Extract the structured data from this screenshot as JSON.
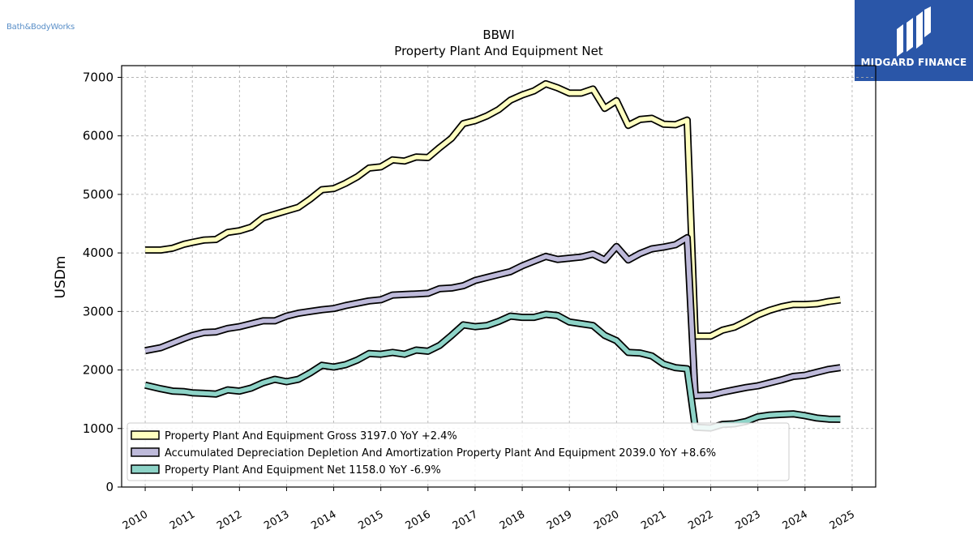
{
  "brand": {
    "company_text": "Bath&BodyWorks",
    "logo_text": "MIDGARD FINANCE"
  },
  "chart_data": {
    "type": "line",
    "title": "BBWI",
    "subtitle": "Property Plant And Equipment Net",
    "xlabel": "",
    "ylabel": "USDm",
    "xlim": [
      2009.5,
      2025.5
    ],
    "ylim": [
      0,
      7200
    ],
    "yticks": [
      0,
      1000,
      2000,
      3000,
      4000,
      5000,
      6000,
      7000
    ],
    "xticks": [
      "2010",
      "2011",
      "2012",
      "2013",
      "2014",
      "2015",
      "2016",
      "2017",
      "2018",
      "2019",
      "2020",
      "2021",
      "2022",
      "2023",
      "2024",
      "2025"
    ],
    "grid": true,
    "legend_position": "lower-left",
    "series": [
      {
        "name": "Property Plant And Equipment Gross",
        "legend_label": "Property Plant And Equipment Gross  3197.0 YoY +2.4%",
        "color": "#ffffc0",
        "points": [
          [
            2010.0,
            4050
          ],
          [
            2010.33,
            4050
          ],
          [
            2010.58,
            4080
          ],
          [
            2010.83,
            4150
          ],
          [
            2011.0,
            4180
          ],
          [
            2011.25,
            4220
          ],
          [
            2011.5,
            4230
          ],
          [
            2011.75,
            4350
          ],
          [
            2012.0,
            4380
          ],
          [
            2012.25,
            4440
          ],
          [
            2012.5,
            4600
          ],
          [
            2012.75,
            4660
          ],
          [
            2013.0,
            4720
          ],
          [
            2013.25,
            4780
          ],
          [
            2013.5,
            4920
          ],
          [
            2013.75,
            5080
          ],
          [
            2014.0,
            5100
          ],
          [
            2014.25,
            5190
          ],
          [
            2014.5,
            5300
          ],
          [
            2014.75,
            5450
          ],
          [
            2015.0,
            5470
          ],
          [
            2015.25,
            5590
          ],
          [
            2015.5,
            5570
          ],
          [
            2015.75,
            5640
          ],
          [
            2016.0,
            5630
          ],
          [
            2016.25,
            5800
          ],
          [
            2016.5,
            5960
          ],
          [
            2016.75,
            6210
          ],
          [
            2017.0,
            6260
          ],
          [
            2017.25,
            6340
          ],
          [
            2017.5,
            6450
          ],
          [
            2017.75,
            6610
          ],
          [
            2018.0,
            6700
          ],
          [
            2018.25,
            6770
          ],
          [
            2018.5,
            6890
          ],
          [
            2018.75,
            6820
          ],
          [
            2019.0,
            6730
          ],
          [
            2019.25,
            6730
          ],
          [
            2019.5,
            6800
          ],
          [
            2019.75,
            6470
          ],
          [
            2020.0,
            6600
          ],
          [
            2020.25,
            6180
          ],
          [
            2020.5,
            6280
          ],
          [
            2020.75,
            6300
          ],
          [
            2021.0,
            6200
          ],
          [
            2021.25,
            6190
          ],
          [
            2021.5,
            6270
          ],
          [
            2021.67,
            2580
          ],
          [
            2022.0,
            2580
          ],
          [
            2022.25,
            2680
          ],
          [
            2022.5,
            2730
          ],
          [
            2022.75,
            2830
          ],
          [
            2023.0,
            2940
          ],
          [
            2023.25,
            3020
          ],
          [
            2023.5,
            3080
          ],
          [
            2023.75,
            3120
          ],
          [
            2024.0,
            3120
          ],
          [
            2024.25,
            3130
          ],
          [
            2024.5,
            3170
          ],
          [
            2024.75,
            3197
          ]
        ]
      },
      {
        "name": "Accumulated Depreciation Depletion And Amortization Property Plant And Equipment",
        "legend_label": "Accumulated Depreciation Depletion And Amortization Property Plant And Equipment  2039.0 YoY +8.6%",
        "color": "#bebada",
        "points": [
          [
            2010.0,
            2330
          ],
          [
            2010.33,
            2380
          ],
          [
            2010.58,
            2460
          ],
          [
            2010.83,
            2540
          ],
          [
            2011.0,
            2590
          ],
          [
            2011.25,
            2640
          ],
          [
            2011.5,
            2650
          ],
          [
            2011.75,
            2710
          ],
          [
            2012.0,
            2740
          ],
          [
            2012.25,
            2790
          ],
          [
            2012.5,
            2840
          ],
          [
            2012.75,
            2840
          ],
          [
            2013.0,
            2920
          ],
          [
            2013.25,
            2970
          ],
          [
            2013.5,
            3000
          ],
          [
            2013.75,
            3030
          ],
          [
            2014.0,
            3050
          ],
          [
            2014.25,
            3100
          ],
          [
            2014.5,
            3140
          ],
          [
            2014.75,
            3180
          ],
          [
            2015.0,
            3200
          ],
          [
            2015.25,
            3280
          ],
          [
            2015.5,
            3290
          ],
          [
            2015.75,
            3300
          ],
          [
            2016.0,
            3310
          ],
          [
            2016.25,
            3390
          ],
          [
            2016.5,
            3400
          ],
          [
            2016.75,
            3440
          ],
          [
            2017.0,
            3530
          ],
          [
            2017.25,
            3580
          ],
          [
            2017.5,
            3630
          ],
          [
            2017.75,
            3680
          ],
          [
            2018.0,
            3780
          ],
          [
            2018.25,
            3860
          ],
          [
            2018.5,
            3940
          ],
          [
            2018.75,
            3890
          ],
          [
            2019.0,
            3910
          ],
          [
            2019.25,
            3930
          ],
          [
            2019.5,
            3980
          ],
          [
            2019.75,
            3880
          ],
          [
            2020.0,
            4110
          ],
          [
            2020.25,
            3880
          ],
          [
            2020.5,
            3990
          ],
          [
            2020.75,
            4070
          ],
          [
            2021.0,
            4100
          ],
          [
            2021.25,
            4140
          ],
          [
            2021.5,
            4260
          ],
          [
            2021.67,
            1560
          ],
          [
            2022.0,
            1570
          ],
          [
            2022.25,
            1620
          ],
          [
            2022.5,
            1660
          ],
          [
            2022.75,
            1700
          ],
          [
            2023.0,
            1730
          ],
          [
            2023.25,
            1780
          ],
          [
            2023.5,
            1830
          ],
          [
            2023.75,
            1890
          ],
          [
            2024.0,
            1910
          ],
          [
            2024.25,
            1960
          ],
          [
            2024.5,
            2010
          ],
          [
            2024.75,
            2039
          ]
        ]
      },
      {
        "name": "Property Plant And Equipment Net",
        "legend_label": "Property Plant And Equipment Net  1158.0 YoY -6.9%",
        "color": "#8dd3c7",
        "points": [
          [
            2010.0,
            1740
          ],
          [
            2010.33,
            1680
          ],
          [
            2010.58,
            1640
          ],
          [
            2010.83,
            1630
          ],
          [
            2011.0,
            1610
          ],
          [
            2011.25,
            1600
          ],
          [
            2011.5,
            1590
          ],
          [
            2011.75,
            1660
          ],
          [
            2012.0,
            1640
          ],
          [
            2012.25,
            1690
          ],
          [
            2012.5,
            1780
          ],
          [
            2012.75,
            1840
          ],
          [
            2013.0,
            1800
          ],
          [
            2013.25,
            1840
          ],
          [
            2013.5,
            1950
          ],
          [
            2013.75,
            2080
          ],
          [
            2014.0,
            2050
          ],
          [
            2014.25,
            2090
          ],
          [
            2014.5,
            2170
          ],
          [
            2014.75,
            2280
          ],
          [
            2015.0,
            2270
          ],
          [
            2015.25,
            2300
          ],
          [
            2015.5,
            2270
          ],
          [
            2015.75,
            2340
          ],
          [
            2016.0,
            2320
          ],
          [
            2016.25,
            2420
          ],
          [
            2016.5,
            2590
          ],
          [
            2016.75,
            2770
          ],
          [
            2017.0,
            2740
          ],
          [
            2017.25,
            2760
          ],
          [
            2017.5,
            2830
          ],
          [
            2017.75,
            2920
          ],
          [
            2018.0,
            2900
          ],
          [
            2018.25,
            2900
          ],
          [
            2018.5,
            2950
          ],
          [
            2018.75,
            2930
          ],
          [
            2019.0,
            2820
          ],
          [
            2019.25,
            2790
          ],
          [
            2019.5,
            2760
          ],
          [
            2019.75,
            2590
          ],
          [
            2020.0,
            2500
          ],
          [
            2020.25,
            2300
          ],
          [
            2020.5,
            2290
          ],
          [
            2020.75,
            2240
          ],
          [
            2021.0,
            2100
          ],
          [
            2021.25,
            2040
          ],
          [
            2021.5,
            2020
          ],
          [
            2021.67,
            1020
          ],
          [
            2022.0,
            1010
          ],
          [
            2022.25,
            1070
          ],
          [
            2022.5,
            1080
          ],
          [
            2022.75,
            1120
          ],
          [
            2023.0,
            1200
          ],
          [
            2023.25,
            1230
          ],
          [
            2023.5,
            1240
          ],
          [
            2023.75,
            1250
          ],
          [
            2024.0,
            1220
          ],
          [
            2024.25,
            1180
          ],
          [
            2024.5,
            1160
          ],
          [
            2024.75,
            1158
          ]
        ]
      }
    ]
  }
}
